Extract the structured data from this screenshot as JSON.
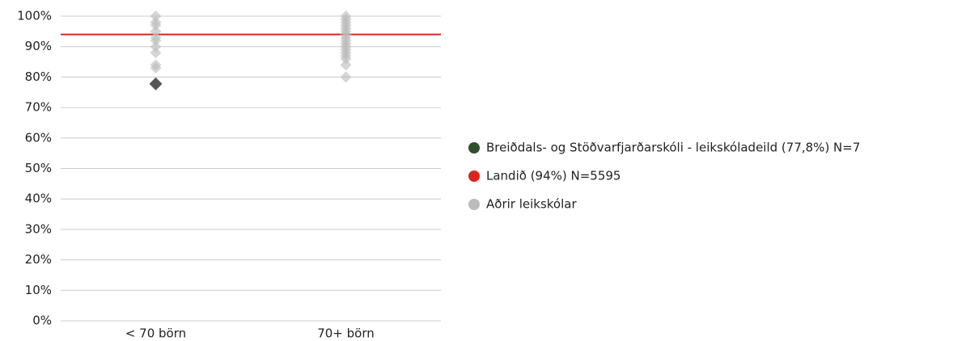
{
  "chart_data": {
    "type": "scatter",
    "categories": [
      "< 70 börn",
      "70+ börn"
    ],
    "ylim": [
      0,
      100
    ],
    "yticks": [
      {
        "value": 0,
        "label": "0%"
      },
      {
        "value": 10,
        "label": "10%"
      },
      {
        "value": 20,
        "label": "20%"
      },
      {
        "value": 30,
        "label": "30%"
      },
      {
        "value": 40,
        "label": "40%"
      },
      {
        "value": 50,
        "label": "50%"
      },
      {
        "value": 60,
        "label": "60%"
      },
      {
        "value": 70,
        "label": "70%"
      },
      {
        "value": 80,
        "label": "80%"
      },
      {
        "value": 90,
        "label": "90%"
      },
      {
        "value": 100,
        "label": "100%"
      }
    ],
    "grid": true,
    "legend": "right",
    "series": [
      {
        "name": "Aðrir leikskólar",
        "color": "#bbbbbb",
        "kind": "points",
        "values": [
          [
            100,
            98,
            97,
            95,
            93,
            92,
            90,
            88,
            84,
            83
          ],
          [
            100,
            99,
            98,
            97,
            96,
            95,
            94,
            93,
            92,
            91,
            90,
            89,
            88,
            87,
            86,
            84,
            80
          ]
        ]
      },
      {
        "name": "Breiðdals- og Stöðvarfjarðarskóli - leikskóladeild (77,8%) N=7",
        "color": "#2f4f2f",
        "marker_color": "#555555",
        "kind": "highlight",
        "values": [
          77.8,
          null
        ]
      },
      {
        "name": "Landið (94%) N=5595",
        "color": "#d9261c",
        "kind": "reference",
        "value": 94
      }
    ],
    "legend_order": [
      1,
      2,
      0
    ]
  }
}
